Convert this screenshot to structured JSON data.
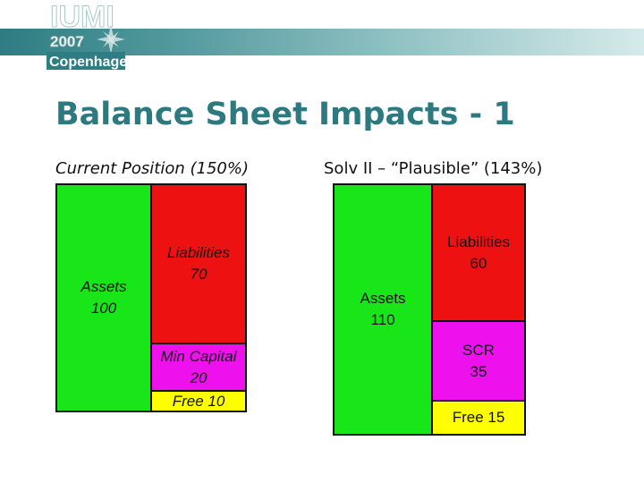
{
  "logo": {
    "line1": "IUMI",
    "line2": "2007",
    "line3": "Copenhagen"
  },
  "title": "Balance Sheet Impacts - 1",
  "left": {
    "heading": "Current Position (150%)",
    "assets": {
      "name": "Assets",
      "value": "100"
    },
    "liabilities": {
      "name": "Liabilities",
      "value": "70"
    },
    "min_capital": {
      "name": "Min Capital",
      "value": "20"
    },
    "free": {
      "label": "Free 10"
    }
  },
  "right": {
    "heading": "Solv II – “Plausible” (143%)",
    "assets": {
      "name": "Assets",
      "value": "110"
    },
    "liabilities": {
      "name": "Liabilities",
      "value": "60"
    },
    "scr": {
      "name": "SCR",
      "value": "35"
    },
    "free": {
      "label": "Free 15"
    }
  },
  "colors": {
    "title": "#2c7a80",
    "assets": "#19e619",
    "liabilities": "#ee1111",
    "capital": "#ee11ee",
    "free": "#ffff00"
  }
}
